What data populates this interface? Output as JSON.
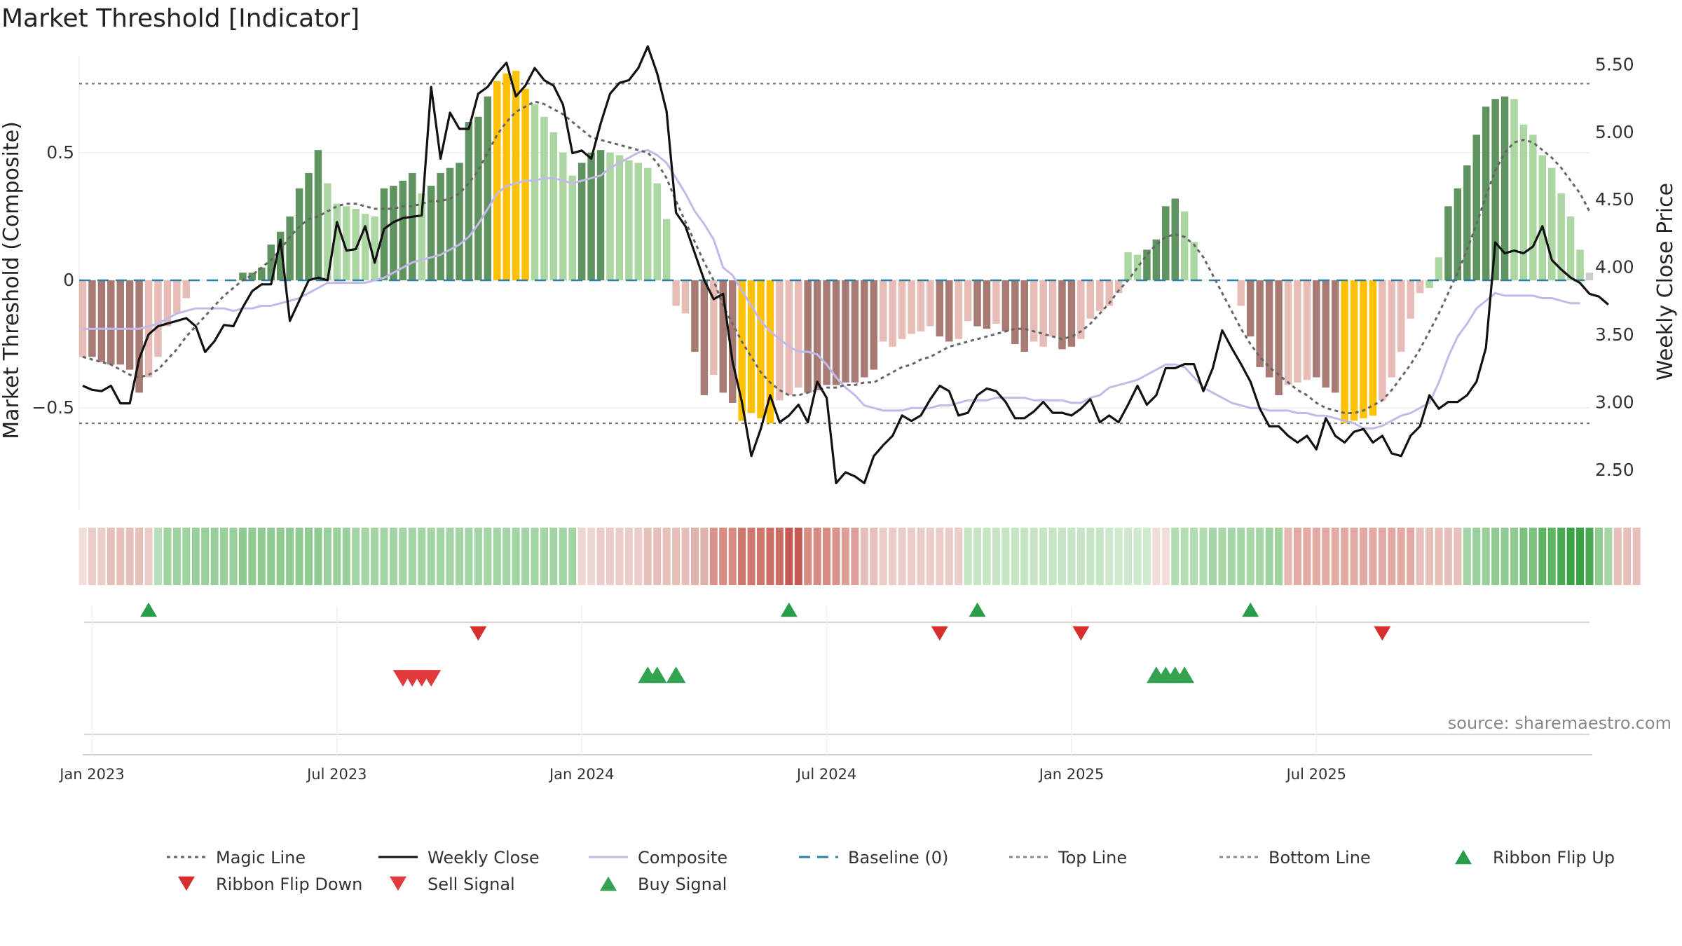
{
  "chart_data": {
    "type": "bar",
    "title": "Market Threshold [Indicator]",
    "ylabel": "Market Threshold (Composite)",
    "y2label": "Weekly Close Price",
    "ylim": [
      -0.9,
      0.9
    ],
    "y2lim": [
      2.2,
      5.6
    ],
    "y_ticks": [
      "0.5",
      "0",
      "−0.5"
    ],
    "y_tick_values": [
      0.5,
      0,
      -0.5
    ],
    "y2_ticks": [
      "5.50",
      "5.00",
      "4.50",
      "4.00",
      "3.50",
      "3.00",
      "2.50"
    ],
    "y2_tick_values": [
      5.5,
      5.0,
      4.5,
      4.0,
      3.5,
      3.0,
      2.5
    ],
    "x_ticks": [
      "Jan 2023",
      "Jul 2023",
      "Jan 2024",
      "Jul 2024",
      "Jan 2025",
      "Jul 2025"
    ],
    "x_tick_weeks": [
      1,
      27,
      53,
      79,
      105,
      131
    ],
    "top_line": 0.77,
    "bottom_line": -0.56,
    "composite_bars": [
      -0.3,
      -0.3,
      -0.32,
      -0.33,
      -0.33,
      -0.35,
      -0.44,
      -0.38,
      -0.3,
      -0.18,
      -0.13,
      -0.07,
      0.0,
      0.0,
      0.0,
      0.0,
      0.0,
      0.03,
      0.03,
      0.05,
      0.14,
      0.19,
      0.25,
      0.36,
      0.42,
      0.51,
      0.38,
      0.3,
      0.29,
      0.28,
      0.26,
      0.25,
      0.36,
      0.37,
      0.39,
      0.42,
      0.34,
      0.37,
      0.42,
      0.44,
      0.46,
      0.62,
      0.64,
      0.72,
      0.78,
      0.81,
      0.82,
      0.75,
      0.69,
      0.64,
      0.58,
      0.5,
      0.41,
      0.46,
      0.5,
      0.51,
      0.5,
      0.49,
      0.47,
      0.46,
      0.44,
      0.38,
      0.24,
      -0.1,
      -0.13,
      -0.28,
      -0.45,
      -0.37,
      -0.44,
      -0.48,
      -0.55,
      -0.52,
      -0.54,
      -0.56,
      -0.47,
      -0.45,
      -0.42,
      -0.44,
      -0.43,
      -0.41,
      -0.41,
      -0.4,
      -0.4,
      -0.38,
      -0.35,
      -0.24,
      -0.26,
      -0.23,
      -0.21,
      -0.2,
      -0.18,
      -0.22,
      -0.24,
      -0.23,
      -0.16,
      -0.18,
      -0.19,
      -0.17,
      -0.2,
      -0.25,
      -0.28,
      -0.24,
      -0.26,
      -0.22,
      -0.27,
      -0.26,
      -0.23,
      -0.15,
      -0.12,
      -0.1,
      -0.05,
      0.11,
      0.1,
      0.12,
      0.16,
      0.29,
      0.32,
      0.27,
      0.15,
      0.0,
      0.0,
      0.0,
      0.0,
      -0.1,
      -0.22,
      -0.34,
      -0.38,
      -0.45,
      -0.41,
      -0.4,
      -0.39,
      -0.38,
      -0.42,
      -0.44,
      -0.56,
      -0.55,
      -0.54,
      -0.53,
      -0.47,
      -0.38,
      -0.28,
      -0.15,
      -0.05,
      -0.03,
      0.09,
      0.29,
      0.36,
      0.45,
      0.57,
      0.68,
      0.71,
      0.72,
      0.71,
      0.61,
      0.57,
      0.49,
      0.44,
      0.34,
      0.25,
      0.12,
      0.03
    ],
    "bar_colors": [
      "#e7bcb6",
      "#a87a74",
      "#a87a74",
      "#a87a74",
      "#a87a74",
      "#a87a74",
      "#a87a74",
      "#e7bcb6",
      "#e7bcb6",
      "#e7bcb6",
      "#e7bcb6",
      "#e7bcb6",
      "#e7bcb6",
      "#e7bcb6",
      "#e7bcb6",
      "#e7bcb6",
      "#e7bcb6",
      "#5f9460",
      "#5f9460",
      "#5f9460",
      "#5f9460",
      "#5f9460",
      "#5f9460",
      "#5f9460",
      "#5f9460",
      "#5f9460",
      "#acd7a3",
      "#acd7a3",
      "#acd7a3",
      "#acd7a3",
      "#acd7a3",
      "#acd7a3",
      "#5f9460",
      "#5f9460",
      "#5f9460",
      "#5f9460",
      "#acd7a3",
      "#5f9460",
      "#5f9460",
      "#5f9460",
      "#5f9460",
      "#5f9460",
      "#5f9460",
      "#5f9460",
      "#ffc107",
      "#ffc107",
      "#ffc107",
      "#ffc107",
      "#acd7a3",
      "#acd7a3",
      "#acd7a3",
      "#acd7a3",
      "#acd7a3",
      "#5f9460",
      "#5f9460",
      "#5f9460",
      "#acd7a3",
      "#acd7a3",
      "#acd7a3",
      "#acd7a3",
      "#acd7a3",
      "#acd7a3",
      "#acd7a3",
      "#e7bcb6",
      "#e7bcb6",
      "#a87a74",
      "#a87a74",
      "#e7bcb6",
      "#a87a74",
      "#a87a74",
      "#ffc107",
      "#ffc107",
      "#ffc107",
      "#ffc107",
      "#e7bcb6",
      "#e7bcb6",
      "#e7bcb6",
      "#a87a74",
      "#a87a74",
      "#a87a74",
      "#a87a74",
      "#a87a74",
      "#a87a74",
      "#a87a74",
      "#a87a74",
      "#e7bcb6",
      "#e7bcb6",
      "#e7bcb6",
      "#e7bcb6",
      "#e7bcb6",
      "#e7bcb6",
      "#a87a74",
      "#a87a74",
      "#e7bcb6",
      "#e7bcb6",
      "#a87a74",
      "#a87a74",
      "#e7bcb6",
      "#a87a74",
      "#a87a74",
      "#a87a74",
      "#e7bcb6",
      "#e7bcb6",
      "#e7bcb6",
      "#a87a74",
      "#a87a74",
      "#e7bcb6",
      "#e7bcb6",
      "#e7bcb6",
      "#e7bcb6",
      "#e7bcb6",
      "#acd7a3",
      "#acd7a3",
      "#5f9460",
      "#5f9460",
      "#5f9460",
      "#5f9460",
      "#acd7a3",
      "#acd7a3",
      "#acd7a3",
      "#acd7a3",
      "#acd7a3",
      "#acd7a3",
      "#e7bcb6",
      "#a87a74",
      "#a87a74",
      "#a87a74",
      "#a87a74",
      "#e7bcb6",
      "#e7bcb6",
      "#e7bcb6",
      "#a87a74",
      "#a87a74",
      "#a87a74",
      "#ffc107",
      "#ffc107",
      "#ffc107",
      "#ffc107",
      "#e7bcb6",
      "#e7bcb6",
      "#e7bcb6",
      "#e7bcb6",
      "#e7bcb6",
      "#acd7a3",
      "#acd7a3",
      "#5f9460",
      "#5f9460",
      "#5f9460",
      "#5f9460",
      "#5f9460",
      "#5f9460",
      "#5f9460",
      "#acd7a3",
      "#acd7a3",
      "#acd7a3",
      "#acd7a3",
      "#acd7a3",
      "#acd7a3",
      "#acd7a3",
      "#acd7a3"
    ],
    "composite_line": [
      -0.19,
      -0.19,
      -0.19,
      -0.19,
      -0.19,
      -0.19,
      -0.19,
      -0.18,
      -0.17,
      -0.15,
      -0.13,
      -0.12,
      -0.11,
      -0.11,
      -0.11,
      -0.11,
      -0.12,
      -0.11,
      -0.11,
      -0.1,
      -0.1,
      -0.09,
      -0.08,
      -0.07,
      -0.05,
      -0.03,
      -0.01,
      -0.01,
      -0.01,
      -0.01,
      -0.01,
      0.0,
      0.01,
      0.03,
      0.05,
      0.07,
      0.08,
      0.09,
      0.1,
      0.12,
      0.14,
      0.17,
      0.22,
      0.28,
      0.34,
      0.37,
      0.38,
      0.39,
      0.39,
      0.4,
      0.4,
      0.39,
      0.38,
      0.39,
      0.4,
      0.41,
      0.44,
      0.46,
      0.48,
      0.5,
      0.51,
      0.49,
      0.46,
      0.4,
      0.34,
      0.27,
      0.22,
      0.16,
      0.05,
      0.02,
      -0.04,
      -0.1,
      -0.16,
      -0.2,
      -0.23,
      -0.26,
      -0.28,
      -0.28,
      -0.29,
      -0.33,
      -0.38,
      -0.42,
      -0.45,
      -0.49,
      -0.5,
      -0.51,
      -0.51,
      -0.51,
      -0.5,
      -0.5,
      -0.5,
      -0.49,
      -0.49,
      -0.48,
      -0.47,
      -0.47,
      -0.47,
      -0.46,
      -0.46,
      -0.46,
      -0.46,
      -0.47,
      -0.47,
      -0.47,
      -0.47,
      -0.48,
      -0.48,
      -0.46,
      -0.45,
      -0.42,
      -0.41,
      -0.4,
      -0.39,
      -0.37,
      -0.35,
      -0.33,
      -0.33,
      -0.34,
      -0.38,
      -0.42,
      -0.44,
      -0.46,
      -0.48,
      -0.49,
      -0.5,
      -0.5,
      -0.51,
      -0.51,
      -0.51,
      -0.52,
      -0.52,
      -0.53,
      -0.53,
      -0.54,
      -0.55,
      -0.56,
      -0.58,
      -0.58,
      -0.57,
      -0.55,
      -0.53,
      -0.52,
      -0.5,
      -0.48,
      -0.4,
      -0.3,
      -0.22,
      -0.17,
      -0.11,
      -0.08,
      -0.05,
      -0.06,
      -0.06,
      -0.06,
      -0.06,
      -0.07,
      -0.07,
      -0.08,
      -0.09,
      -0.09
    ],
    "magic_line": [
      -0.3,
      -0.31,
      -0.32,
      -0.33,
      -0.35,
      -0.37,
      -0.38,
      -0.37,
      -0.35,
      -0.31,
      -0.27,
      -0.22,
      -0.18,
      -0.14,
      -0.1,
      -0.06,
      -0.03,
      0.0,
      0.02,
      0.05,
      0.08,
      0.12,
      0.17,
      0.21,
      0.24,
      0.25,
      0.27,
      0.29,
      0.3,
      0.3,
      0.29,
      0.28,
      0.28,
      0.28,
      0.29,
      0.29,
      0.3,
      0.31,
      0.31,
      0.32,
      0.34,
      0.38,
      0.43,
      0.5,
      0.57,
      0.62,
      0.66,
      0.68,
      0.7,
      0.69,
      0.67,
      0.65,
      0.62,
      0.59,
      0.56,
      0.55,
      0.54,
      0.53,
      0.52,
      0.51,
      0.5,
      0.46,
      0.4,
      0.31,
      0.23,
      0.15,
      0.07,
      0.0,
      -0.1,
      -0.17,
      -0.24,
      -0.3,
      -0.36,
      -0.4,
      -0.43,
      -0.45,
      -0.45,
      -0.44,
      -0.43,
      -0.42,
      -0.42,
      -0.41,
      -0.41,
      -0.4,
      -0.4,
      -0.38,
      -0.36,
      -0.34,
      -0.33,
      -0.31,
      -0.3,
      -0.28,
      -0.26,
      -0.25,
      -0.24,
      -0.23,
      -0.22,
      -0.21,
      -0.2,
      -0.19,
      -0.19,
      -0.2,
      -0.21,
      -0.22,
      -0.23,
      -0.22,
      -0.2,
      -0.17,
      -0.13,
      -0.09,
      -0.04,
      0.0,
      0.05,
      0.1,
      0.14,
      0.17,
      0.18,
      0.17,
      0.14,
      0.09,
      0.02,
      -0.05,
      -0.12,
      -0.19,
      -0.25,
      -0.3,
      -0.34,
      -0.37,
      -0.4,
      -0.43,
      -0.45,
      -0.48,
      -0.5,
      -0.51,
      -0.52,
      -0.52,
      -0.51,
      -0.49,
      -0.47,
      -0.43,
      -0.38,
      -0.33,
      -0.27,
      -0.2,
      -0.13,
      -0.05,
      0.03,
      0.12,
      0.22,
      0.33,
      0.43,
      0.5,
      0.54,
      0.55,
      0.54,
      0.51,
      0.48,
      0.44,
      0.39,
      0.34,
      0.27
    ],
    "weekly_close": [
      3.12,
      3.09,
      3.08,
      3.12,
      2.99,
      2.99,
      3.32,
      3.5,
      3.56,
      3.58,
      3.6,
      3.62,
      3.56,
      3.37,
      3.45,
      3.57,
      3.56,
      3.7,
      3.82,
      3.87,
      3.87,
      4.2,
      3.6,
      3.75,
      3.9,
      3.92,
      3.9,
      4.33,
      4.12,
      4.13,
      4.3,
      4.03,
      4.28,
      4.33,
      4.36,
      4.37,
      4.38,
      5.33,
      4.8,
      5.14,
      5.02,
      5.02,
      5.28,
      5.33,
      5.43,
      5.51,
      5.26,
      5.34,
      5.47,
      5.38,
      5.34,
      5.2,
      4.84,
      4.86,
      4.8,
      5.06,
      5.28,
      5.36,
      5.38,
      5.47,
      5.63,
      5.43,
      5.15,
      4.4,
      4.3,
      4.1,
      3.9,
      3.76,
      3.8,
      3.3,
      3.0,
      2.6,
      2.8,
      3.05,
      2.85,
      2.9,
      2.98,
      2.85,
      3.15,
      3.03,
      2.4,
      2.48,
      2.45,
      2.4,
      2.6,
      2.68,
      2.75,
      2.9,
      2.86,
      2.9,
      3.02,
      3.12,
      3.08,
      2.9,
      2.92,
      3.05,
      3.1,
      3.08,
      3.0,
      2.88,
      2.88,
      2.93,
      3.0,
      2.92,
      2.92,
      2.9,
      2.95,
      3.02,
      2.85,
      2.9,
      2.85,
      2.98,
      3.12,
      2.98,
      3.05,
      3.25,
      3.25,
      3.28,
      3.28,
      3.08,
      3.25,
      3.53,
      3.4,
      3.28,
      3.15,
      2.95,
      2.82,
      2.82,
      2.75,
      2.7,
      2.75,
      2.65,
      2.88,
      2.75,
      2.7,
      2.78,
      2.8,
      2.7,
      2.75,
      2.62,
      2.6,
      2.75,
      2.82,
      3.05,
      2.95,
      3.0,
      3.0,
      3.05,
      3.15,
      3.4,
      4.18,
      4.1,
      4.12,
      4.1,
      4.15,
      4.3,
      4.05,
      3.98,
      3.92,
      3.88,
      3.8,
      3.78,
      3.72
    ],
    "ribbon_colors": [
      "#f0dcd9",
      "#ebccc8",
      "#ebccc8",
      "#e6bfba",
      "#e6bfba",
      "#e6bfba",
      "#e6bfba",
      "#ebccc8",
      "#b8dfb9",
      "#9ed29f",
      "#9ed29f",
      "#9ed29f",
      "#98cf9a",
      "#98cf9a",
      "#98cf9a",
      "#98cf9a",
      "#98cf9a",
      "#8fcb91",
      "#8fcb91",
      "#8fcb91",
      "#8fcb91",
      "#8fcb91",
      "#8fcb91",
      "#8fcb91",
      "#8fcb91",
      "#8fcb91",
      "#98cf9a",
      "#98cf9a",
      "#98cf9a",
      "#a3d4a3",
      "#a3d4a3",
      "#a3d4a3",
      "#a3d4a3",
      "#a3d4a3",
      "#a3d4a3",
      "#a3d4a3",
      "#a3d4a3",
      "#a3d4a3",
      "#a3d4a3",
      "#a3d4a3",
      "#a3d4a3",
      "#a3d4a3",
      "#a3d4a3",
      "#a3d4a3",
      "#a3d4a3",
      "#a3d4a3",
      "#a3d4a3",
      "#a3d4a3",
      "#a3d4a3",
      "#a3d4a3",
      "#a3d4a3",
      "#a3d4a3",
      "#a3d4a3",
      "#f0d6d3",
      "#f0d6d3",
      "#ebccc8",
      "#ebccc8",
      "#ebccc8",
      "#ebccc8",
      "#ebccc8",
      "#e6bfba",
      "#e6bfba",
      "#e6bfba",
      "#e6bfba",
      "#e6bfba",
      "#e1b1ab",
      "#e1b1ab",
      "#d9938b",
      "#d78b83",
      "#d78b83",
      "#cf766d",
      "#cf766d",
      "#cf766d",
      "#cc6e65",
      "#cc6e65",
      "#c45a51",
      "#c45a51",
      "#d78b83",
      "#d78b83",
      "#d78b83",
      "#d9938b",
      "#de9f98",
      "#de9f98",
      "#e6bfba",
      "#e6bfba",
      "#ebccc8",
      "#ebccc8",
      "#ebccc8",
      "#ebccc8",
      "#ebccc8",
      "#ebccc8",
      "#ebccc8",
      "#ebccc8",
      "#ebccc8",
      "#c5e5c5",
      "#c5e5c5",
      "#c5e5c5",
      "#c5e5c5",
      "#c5e5c5",
      "#c5e5c5",
      "#c5e5c5",
      "#c5e5c5",
      "#c5e5c5",
      "#c5e5c5",
      "#c5e5c5",
      "#c5e5c5",
      "#c5e5c5",
      "#c5e5c5",
      "#c5e5c5",
      "#cfe9cf",
      "#cfe9cf",
      "#cfe9cf",
      "#cfe9cf",
      "#cfe9cf",
      "#f0dcd9",
      "#f0dcd9",
      "#b2dcb2",
      "#b2dcb2",
      "#b2dcb2",
      "#b2dcb2",
      "#a6d6a6",
      "#a6d6a6",
      "#a6d6a6",
      "#a6d6a6",
      "#a6d6a6",
      "#a6d6a6",
      "#9ed29f",
      "#9ed29f",
      "#e7b8b2",
      "#e3aaa3",
      "#e3aaa3",
      "#e3aaa3",
      "#e3aaa3",
      "#e3aaa3",
      "#e3aaa3",
      "#e3aaa3",
      "#e3aaa3",
      "#e3aaa3",
      "#e3aaa3",
      "#e3aaa3",
      "#e3aaa3",
      "#e3aaa3",
      "#e6bfba",
      "#e6bfba",
      "#e6bfba",
      "#e6bfba",
      "#e6bfba",
      "#a3d4a3",
      "#98cf9a",
      "#98cf9a",
      "#8fcb91",
      "#8fcb91",
      "#8fcb91",
      "#7cc27e",
      "#7cc27e",
      "#5db562",
      "#5db562",
      "#4aa951",
      "#3ba244",
      "#3ba244",
      "#4aa951",
      "#8fcb91",
      "#a6d6a6",
      "#e6bfba",
      "#e6bfba",
      "#e6bfba"
    ],
    "ribbon_flip_up_weeks": [
      7,
      75,
      95,
      124
    ],
    "ribbon_flip_down_weeks": [
      42,
      91,
      106,
      138
    ],
    "sell_signal_weeks": [
      34,
      35,
      36,
      37
    ],
    "buy_signal_weeks": [
      60,
      61,
      63,
      114,
      115,
      116,
      117
    ],
    "legend": [
      {
        "label": "Magic Line",
        "style": "dotted",
        "color": "#666666"
      },
      {
        "label": "Weekly Close",
        "style": "solid",
        "color": "#111111"
      },
      {
        "label": "Composite",
        "style": "solid",
        "color": "#c3b9e8"
      },
      {
        "label": "Baseline (0)",
        "style": "dashed",
        "color": "#2e7fa8"
      },
      {
        "label": "Top Line",
        "style": "dotted",
        "color": "#888888"
      },
      {
        "label": "Bottom Line",
        "style": "dotted",
        "color": "#888888"
      },
      {
        "label": "Ribbon Flip Up",
        "style": "triangle-up",
        "color": "#2a9d4b"
      },
      {
        "label": "Ribbon Flip Down",
        "style": "triangle-down",
        "color": "#d62d2d"
      },
      {
        "label": "Sell Signal",
        "style": "triangle-down",
        "color": "#e03b3b"
      },
      {
        "label": "Buy Signal",
        "style": "triangle-up",
        "color": "#33a352"
      }
    ],
    "legend_placement": "bottom",
    "source": "source: sharemaestro.com"
  }
}
